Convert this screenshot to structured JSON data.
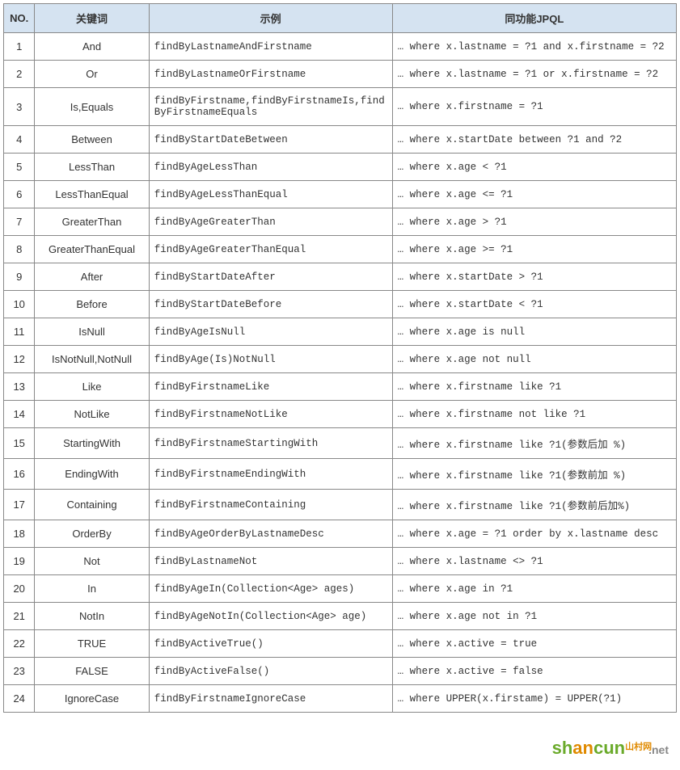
{
  "table": {
    "header": {
      "no": "NO.",
      "keyword": "关键词",
      "example": "示例",
      "jpql": "同功能JPQL"
    },
    "rows": [
      {
        "no": "1",
        "keyword": "And",
        "example": "findByLastnameAndFirstname",
        "jpql": "… where x.lastname = ?1 and x.firstname = ?2"
      },
      {
        "no": "2",
        "keyword": "Or",
        "example": "findByLastnameOrFirstname",
        "jpql": "… where x.lastname = ?1 or x.firstname = ?2"
      },
      {
        "no": "3",
        "keyword": "Is,Equals",
        "example": "findByFirstname,findByFirstnameIs,findByFirstnameEquals",
        "jpql": "… where x.firstname = ?1"
      },
      {
        "no": "4",
        "keyword": "Between",
        "example": "findByStartDateBetween",
        "jpql": "… where x.startDate between ?1 and ?2"
      },
      {
        "no": "5",
        "keyword": "LessThan",
        "example": "findByAgeLessThan",
        "jpql": "… where x.age < ?1"
      },
      {
        "no": "6",
        "keyword": "LessThanEqual",
        "example": "findByAgeLessThanEqual",
        "jpql": "… where x.age <= ?1"
      },
      {
        "no": "7",
        "keyword": "GreaterThan",
        "example": "findByAgeGreaterThan",
        "jpql": "… where x.age > ?1"
      },
      {
        "no": "8",
        "keyword": "GreaterThanEqual",
        "example": "findByAgeGreaterThanEqual",
        "jpql": "… where x.age >= ?1"
      },
      {
        "no": "9",
        "keyword": "After",
        "example": "findByStartDateAfter",
        "jpql": "… where x.startDate > ?1"
      },
      {
        "no": "10",
        "keyword": "Before",
        "example": "findByStartDateBefore",
        "jpql": "… where x.startDate < ?1"
      },
      {
        "no": "11",
        "keyword": "IsNull",
        "example": "findByAgeIsNull",
        "jpql": "… where x.age is null"
      },
      {
        "no": "12",
        "keyword": "IsNotNull,NotNull",
        "example": "findByAge(Is)NotNull",
        "jpql": "… where x.age not null"
      },
      {
        "no": "13",
        "keyword": "Like",
        "example": "findByFirstnameLike",
        "jpql": "… where x.firstname like ?1"
      },
      {
        "no": "14",
        "keyword": "NotLike",
        "example": "findByFirstnameNotLike",
        "jpql": "… where x.firstname not like ?1"
      },
      {
        "no": "15",
        "keyword": "StartingWith",
        "example": "findByFirstnameStartingWith",
        "jpql": "… where x.firstname like ?1(参数后加 %)"
      },
      {
        "no": "16",
        "keyword": "EndingWith",
        "example": "findByFirstnameEndingWith",
        "jpql": "… where x.firstname like ?1(参数前加 %)"
      },
      {
        "no": "17",
        "keyword": "Containing",
        "example": "findByFirstnameContaining",
        "jpql": "… where x.firstname like ?1(参数前后加%)"
      },
      {
        "no": "18",
        "keyword": "OrderBy",
        "example": "findByAgeOrderByLastnameDesc",
        "jpql": "… where x.age = ?1 order by x.lastname desc"
      },
      {
        "no": "19",
        "keyword": "Not",
        "example": "findByLastnameNot",
        "jpql": "… where x.lastname <> ?1"
      },
      {
        "no": "20",
        "keyword": "In",
        "example": "findByAgeIn(Collection<Age> ages)",
        "jpql": "… where x.age in ?1"
      },
      {
        "no": "21",
        "keyword": "NotIn",
        "example": "findByAgeNotIn(Collection<Age> age)",
        "jpql": "… where x.age not in ?1"
      },
      {
        "no": "22",
        "keyword": "TRUE",
        "example": "findByActiveTrue()",
        "jpql": "… where x.active = true"
      },
      {
        "no": "23",
        "keyword": "FALSE",
        "example": "findByActiveFalse()",
        "jpql": "… where x.active = false"
      },
      {
        "no": "24",
        "keyword": "IgnoreCase",
        "example": "findByFirstnameIgnoreCase",
        "jpql": "… where UPPER(x.firstame) = UPPER(?1)"
      }
    ]
  },
  "watermark": {
    "part1": "sh",
    "part2": "an",
    "part3": "cun",
    "tag": "山村网",
    "suffix": ".net"
  },
  "styles": {
    "header_bg": "#d5e3f1",
    "border_color": "#888888",
    "text_color": "#333333",
    "mono_font": "Consolas, Courier New, monospace"
  }
}
